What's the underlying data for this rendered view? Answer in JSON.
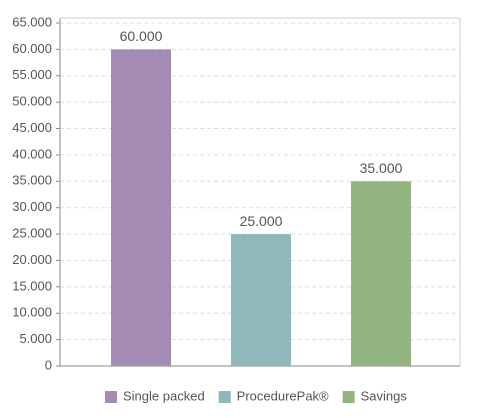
{
  "chart_data": {
    "type": "bar",
    "categories": [
      "Single packed",
      "ProcedurePak®",
      "Savings"
    ],
    "values": [
      60000,
      25000,
      35000
    ],
    "value_labels": [
      "60.000",
      "25.000",
      "35.000"
    ],
    "colors": [
      "#a38bb4",
      "#8eb8b9",
      "#92b57f"
    ],
    "ylim": [
      0,
      65000
    ],
    "yticks": [
      0,
      {
        "value": 5000,
        "label": "5.000"
      },
      {
        "value": 10000,
        "label": "10.000"
      },
      {
        "value": 15000,
        "label": "15.000"
      },
      {
        "value": 20000,
        "label": "20.000"
      },
      {
        "value": 25000,
        "label": "25.000"
      },
      {
        "value": 30000,
        "label": "30.000"
      },
      {
        "value": 35000,
        "label": "35.000"
      },
      {
        "value": 40000,
        "label": "40.000"
      },
      {
        "value": 45000,
        "label": "45.000"
      },
      {
        "value": 50000,
        "label": "50.000"
      },
      {
        "value": 55000,
        "label": "55.000"
      },
      {
        "value": 60000,
        "label": "60.000"
      },
      {
        "value": 65000,
        "label": "65.000"
      }
    ],
    "grid": true,
    "legend": "bottom"
  }
}
